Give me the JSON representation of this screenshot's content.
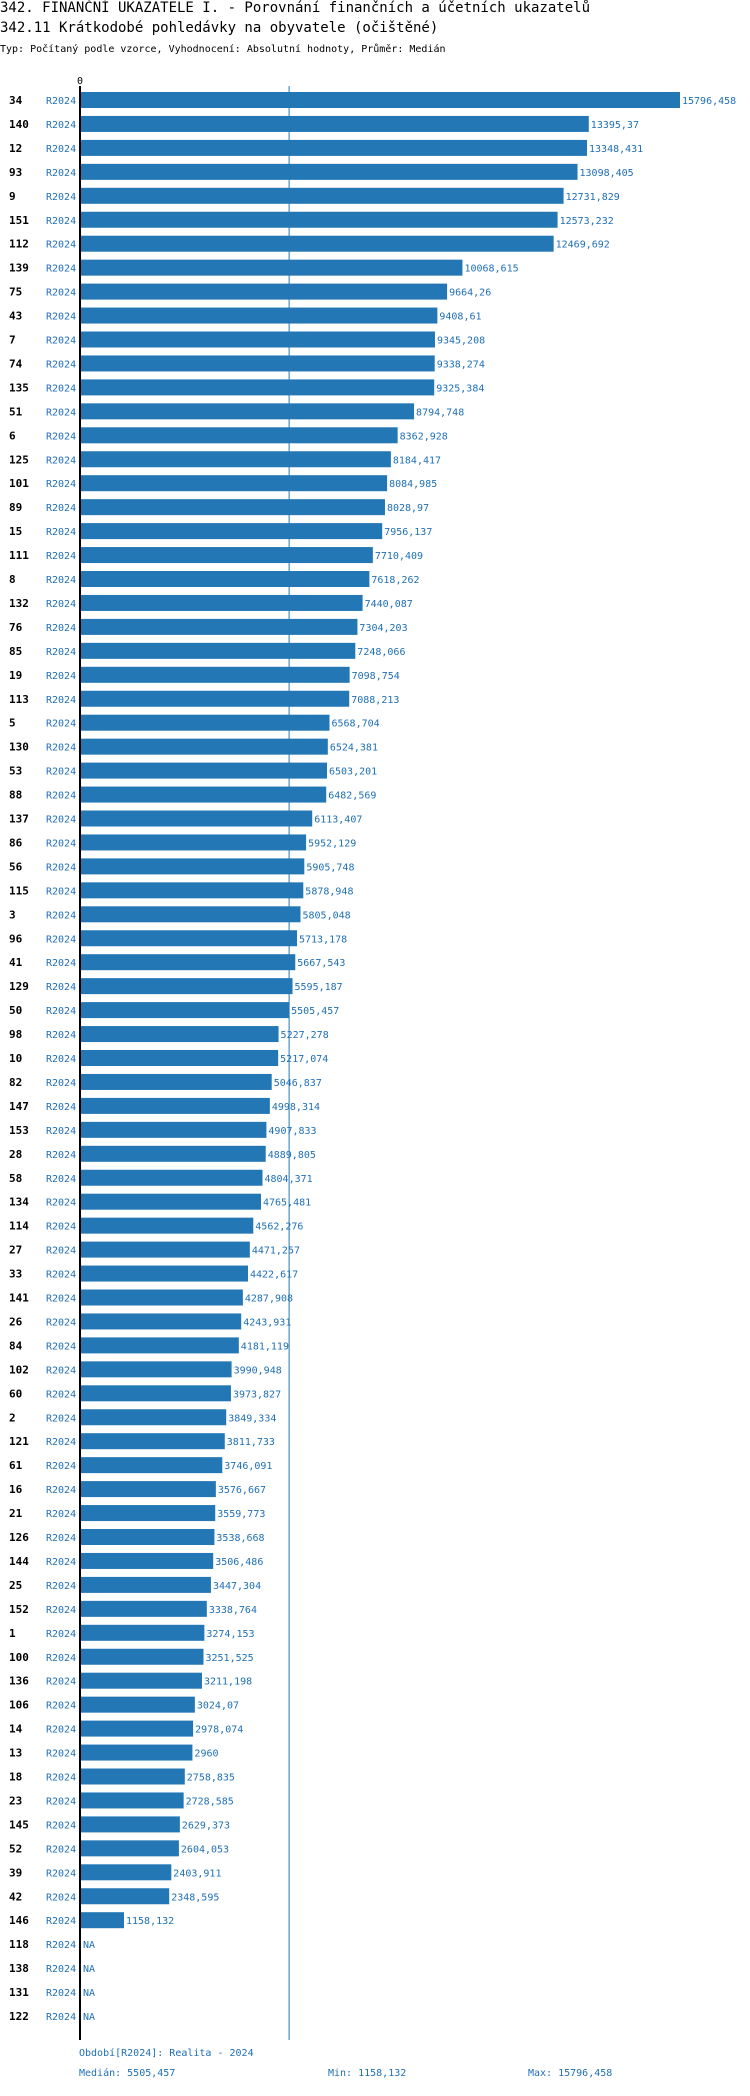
{
  "header": {
    "title": "342. FINANČNÍ UKAZATELE I. - Porovnání finančních a účetních ukazatelů",
    "subtitle_main": "342.11 Krátkodobé pohledávky na obyvatele (očištěné)",
    "subtitle_info": "Typ: Počítaný podle vzorce, Vyhodnocení: Absolutní hodnoty, Průměr: Medián"
  },
  "colors": {
    "bar": "#2377b4",
    "text_blue": "#1f6fb5",
    "axis": "#000000",
    "median_line": "#2377b4"
  },
  "chart_data": {
    "type": "bar",
    "orientation": "horizontal",
    "zero_label": "0",
    "xlim": [
      0,
      15796.458
    ],
    "median_value": 5505.457,
    "rows": [
      {
        "id": "34",
        "period": "R2024",
        "value": 15796.458,
        "label": "15796,458"
      },
      {
        "id": "140",
        "period": "R2024",
        "value": 13395.37,
        "label": "13395,37"
      },
      {
        "id": "12",
        "period": "R2024",
        "value": 13348.431,
        "label": "13348,431"
      },
      {
        "id": "93",
        "period": "R2024",
        "value": 13098.405,
        "label": "13098,405"
      },
      {
        "id": "9",
        "period": "R2024",
        "value": 12731.829,
        "label": "12731,829"
      },
      {
        "id": "151",
        "period": "R2024",
        "value": 12573.232,
        "label": "12573,232"
      },
      {
        "id": "112",
        "period": "R2024",
        "value": 12469.692,
        "label": "12469,692"
      },
      {
        "id": "139",
        "period": "R2024",
        "value": 10068.615,
        "label": "10068,615"
      },
      {
        "id": "75",
        "period": "R2024",
        "value": 9664.26,
        "label": "9664,26"
      },
      {
        "id": "43",
        "period": "R2024",
        "value": 9408.61,
        "label": "9408,61"
      },
      {
        "id": "7",
        "period": "R2024",
        "value": 9345.208,
        "label": "9345,208"
      },
      {
        "id": "74",
        "period": "R2024",
        "value": 9338.274,
        "label": "9338,274"
      },
      {
        "id": "135",
        "period": "R2024",
        "value": 9325.384,
        "label": "9325,384"
      },
      {
        "id": "51",
        "period": "R2024",
        "value": 8794.748,
        "label": "8794,748"
      },
      {
        "id": "6",
        "period": "R2024",
        "value": 8362.928,
        "label": "8362,928"
      },
      {
        "id": "125",
        "period": "R2024",
        "value": 8184.417,
        "label": "8184,417"
      },
      {
        "id": "101",
        "period": "R2024",
        "value": 8084.985,
        "label": "8084,985"
      },
      {
        "id": "89",
        "period": "R2024",
        "value": 8028.97,
        "label": "8028,97"
      },
      {
        "id": "15",
        "period": "R2024",
        "value": 7956.137,
        "label": "7956,137"
      },
      {
        "id": "111",
        "period": "R2024",
        "value": 7710.409,
        "label": "7710,409"
      },
      {
        "id": "8",
        "period": "R2024",
        "value": 7618.262,
        "label": "7618,262"
      },
      {
        "id": "132",
        "period": "R2024",
        "value": 7440.087,
        "label": "7440,087"
      },
      {
        "id": "76",
        "period": "R2024",
        "value": 7304.203,
        "label": "7304,203"
      },
      {
        "id": "85",
        "period": "R2024",
        "value": 7248.066,
        "label": "7248,066"
      },
      {
        "id": "19",
        "period": "R2024",
        "value": 7098.754,
        "label": "7098,754"
      },
      {
        "id": "113",
        "period": "R2024",
        "value": 7088.213,
        "label": "7088,213"
      },
      {
        "id": "5",
        "period": "R2024",
        "value": 6568.704,
        "label": "6568,704"
      },
      {
        "id": "130",
        "period": "R2024",
        "value": 6524.381,
        "label": "6524,381"
      },
      {
        "id": "53",
        "period": "R2024",
        "value": 6503.201,
        "label": "6503,201"
      },
      {
        "id": "88",
        "period": "R2024",
        "value": 6482.569,
        "label": "6482,569"
      },
      {
        "id": "137",
        "period": "R2024",
        "value": 6113.407,
        "label": "6113,407"
      },
      {
        "id": "86",
        "period": "R2024",
        "value": 5952.129,
        "label": "5952,129"
      },
      {
        "id": "56",
        "period": "R2024",
        "value": 5905.748,
        "label": "5905,748"
      },
      {
        "id": "115",
        "period": "R2024",
        "value": 5878.948,
        "label": "5878,948"
      },
      {
        "id": "3",
        "period": "R2024",
        "value": 5805.048,
        "label": "5805,048"
      },
      {
        "id": "96",
        "period": "R2024",
        "value": 5713.178,
        "label": "5713,178"
      },
      {
        "id": "41",
        "period": "R2024",
        "value": 5667.543,
        "label": "5667,543"
      },
      {
        "id": "129",
        "period": "R2024",
        "value": 5595.187,
        "label": "5595,187"
      },
      {
        "id": "50",
        "period": "R2024",
        "value": 5505.457,
        "label": "5505,457"
      },
      {
        "id": "98",
        "period": "R2024",
        "value": 5227.278,
        "label": "5227,278"
      },
      {
        "id": "10",
        "period": "R2024",
        "value": 5217.074,
        "label": "5217,074"
      },
      {
        "id": "82",
        "period": "R2024",
        "value": 5046.837,
        "label": "5046,837"
      },
      {
        "id": "147",
        "period": "R2024",
        "value": 4998.314,
        "label": "4998,314"
      },
      {
        "id": "153",
        "period": "R2024",
        "value": 4907.833,
        "label": "4907,833"
      },
      {
        "id": "28",
        "period": "R2024",
        "value": 4889.805,
        "label": "4889,805"
      },
      {
        "id": "58",
        "period": "R2024",
        "value": 4804.371,
        "label": "4804,371"
      },
      {
        "id": "134",
        "period": "R2024",
        "value": 4765.481,
        "label": "4765,481"
      },
      {
        "id": "114",
        "period": "R2024",
        "value": 4562.276,
        "label": "4562,276"
      },
      {
        "id": "27",
        "period": "R2024",
        "value": 4471.257,
        "label": "4471,257"
      },
      {
        "id": "33",
        "period": "R2024",
        "value": 4422.617,
        "label": "4422,617"
      },
      {
        "id": "141",
        "period": "R2024",
        "value": 4287.908,
        "label": "4287,908"
      },
      {
        "id": "26",
        "period": "R2024",
        "value": 4243.931,
        "label": "4243,931"
      },
      {
        "id": "84",
        "period": "R2024",
        "value": 4181.119,
        "label": "4181,119"
      },
      {
        "id": "102",
        "period": "R2024",
        "value": 3990.948,
        "label": "3990,948"
      },
      {
        "id": "60",
        "period": "R2024",
        "value": 3973.827,
        "label": "3973,827"
      },
      {
        "id": "2",
        "period": "R2024",
        "value": 3849.334,
        "label": "3849,334"
      },
      {
        "id": "121",
        "period": "R2024",
        "value": 3811.733,
        "label": "3811,733"
      },
      {
        "id": "61",
        "period": "R2024",
        "value": 3746.091,
        "label": "3746,091"
      },
      {
        "id": "16",
        "period": "R2024",
        "value": 3576.667,
        "label": "3576,667"
      },
      {
        "id": "21",
        "period": "R2024",
        "value": 3559.773,
        "label": "3559,773"
      },
      {
        "id": "126",
        "period": "R2024",
        "value": 3538.668,
        "label": "3538,668"
      },
      {
        "id": "144",
        "period": "R2024",
        "value": 3506.486,
        "label": "3506,486"
      },
      {
        "id": "25",
        "period": "R2024",
        "value": 3447.304,
        "label": "3447,304"
      },
      {
        "id": "152",
        "period": "R2024",
        "value": 3338.764,
        "label": "3338,764"
      },
      {
        "id": "1",
        "period": "R2024",
        "value": 3274.153,
        "label": "3274,153"
      },
      {
        "id": "100",
        "period": "R2024",
        "value": 3251.525,
        "label": "3251,525"
      },
      {
        "id": "136",
        "period": "R2024",
        "value": 3211.198,
        "label": "3211,198"
      },
      {
        "id": "106",
        "period": "R2024",
        "value": 3024.07,
        "label": "3024,07"
      },
      {
        "id": "14",
        "period": "R2024",
        "value": 2978.074,
        "label": "2978,074"
      },
      {
        "id": "13",
        "period": "R2024",
        "value": 2960,
        "label": "2960"
      },
      {
        "id": "18",
        "period": "R2024",
        "value": 2758.835,
        "label": "2758,835"
      },
      {
        "id": "23",
        "period": "R2024",
        "value": 2728.585,
        "label": "2728,585"
      },
      {
        "id": "145",
        "period": "R2024",
        "value": 2629.373,
        "label": "2629,373"
      },
      {
        "id": "52",
        "period": "R2024",
        "value": 2604.053,
        "label": "2604,053"
      },
      {
        "id": "39",
        "period": "R2024",
        "value": 2403.911,
        "label": "2403,911"
      },
      {
        "id": "42",
        "period": "R2024",
        "value": 2348.595,
        "label": "2348,595"
      },
      {
        "id": "146",
        "period": "R2024",
        "value": 1158.132,
        "label": "1158,132"
      },
      {
        "id": "118",
        "period": "R2024",
        "value": null,
        "label": "NA"
      },
      {
        "id": "138",
        "period": "R2024",
        "value": null,
        "label": "NA"
      },
      {
        "id": "131",
        "period": "R2024",
        "value": null,
        "label": "NA"
      },
      {
        "id": "122",
        "period": "R2024",
        "value": null,
        "label": "NA"
      }
    ]
  },
  "footer": {
    "period_text": "Období[R2024]: Realita - 2024",
    "median_text": "Medián: 5505,457",
    "min_text": "Min: 1158,132",
    "max_text": "Max: 15796,458"
  }
}
